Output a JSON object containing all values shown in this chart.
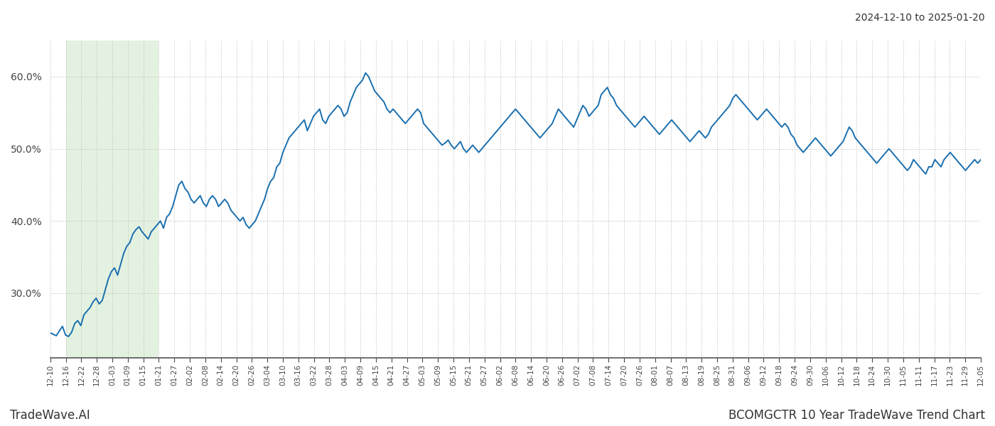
{
  "title_right": "2024-12-10 to 2025-01-20",
  "footer_left": "TradeWave.AI",
  "footer_right": "BCOMGCTR 10 Year TradeWave Trend Chart",
  "line_color": "#1a6faf",
  "line_width": 1.4,
  "highlight_color": "#cde8c8",
  "highlight_alpha": 0.55,
  "background_color": "#ffffff",
  "grid_color": "#bbbbbb",
  "grid_style": ":",
  "ylim_min": 21.0,
  "ylim_max": 65.0,
  "ytick_step": 10.0,
  "yticks": [
    30.0,
    40.0,
    50.0,
    60.0
  ],
  "x_labels": [
    "12-10",
    "12-16",
    "12-22",
    "12-28",
    "01-03",
    "01-09",
    "01-15",
    "01-21",
    "01-27",
    "02-02",
    "02-08",
    "02-14",
    "02-20",
    "02-26",
    "03-04",
    "03-10",
    "03-16",
    "03-22",
    "03-28",
    "04-03",
    "04-09",
    "04-15",
    "04-21",
    "04-27",
    "05-03",
    "05-09",
    "05-15",
    "05-21",
    "05-27",
    "06-02",
    "06-08",
    "06-14",
    "06-20",
    "06-26",
    "07-02",
    "07-08",
    "07-14",
    "07-20",
    "07-26",
    "08-01",
    "08-07",
    "08-13",
    "08-19",
    "08-25",
    "08-31",
    "09-06",
    "09-12",
    "09-18",
    "09-24",
    "09-30",
    "10-06",
    "10-12",
    "10-18",
    "10-24",
    "10-30",
    "11-05",
    "11-11",
    "11-17",
    "11-23",
    "11-29",
    "12-05"
  ],
  "highlight_label_start": "12-16",
  "highlight_label_end": "01-21",
  "values": [
    24.5,
    24.3,
    24.1,
    24.8,
    25.4,
    24.2,
    24.0,
    24.6,
    25.8,
    26.2,
    25.5,
    27.0,
    27.5,
    28.0,
    28.8,
    29.3,
    28.5,
    29.0,
    30.5,
    32.0,
    33.0,
    33.5,
    32.5,
    34.0,
    35.5,
    36.5,
    37.0,
    38.2,
    38.8,
    39.2,
    38.5,
    38.0,
    37.5,
    38.5,
    39.0,
    39.5,
    40.0,
    39.0,
    40.5,
    41.0,
    42.0,
    43.5,
    45.0,
    45.5,
    44.5,
    44.0,
    43.0,
    42.5,
    43.0,
    43.5,
    42.5,
    42.0,
    43.0,
    43.5,
    43.0,
    42.0,
    42.5,
    43.0,
    42.5,
    41.5,
    41.0,
    40.5,
    40.0,
    40.5,
    39.5,
    39.0,
    39.5,
    40.0,
    41.0,
    42.0,
    43.0,
    44.5,
    45.5,
    46.0,
    47.5,
    48.0,
    49.5,
    50.5,
    51.5,
    52.0,
    52.5,
    53.0,
    53.5,
    54.0,
    52.5,
    53.5,
    54.5,
    55.0,
    55.5,
    54.0,
    53.5,
    54.5,
    55.0,
    55.5,
    56.0,
    55.5,
    54.5,
    55.0,
    56.5,
    57.5,
    58.5,
    59.0,
    59.5,
    60.5,
    60.0,
    59.0,
    58.0,
    57.5,
    57.0,
    56.5,
    55.5,
    55.0,
    55.5,
    55.0,
    54.5,
    54.0,
    53.5,
    54.0,
    54.5,
    55.0,
    55.5,
    55.0,
    53.5,
    53.0,
    52.5,
    52.0,
    51.5,
    51.0,
    50.5,
    50.8,
    51.2,
    50.5,
    50.0,
    50.5,
    51.0,
    50.0,
    49.5,
    50.0,
    50.5,
    50.0,
    49.5,
    50.0,
    50.5,
    51.0,
    51.5,
    52.0,
    52.5,
    53.0,
    53.5,
    54.0,
    54.5,
    55.0,
    55.5,
    55.0,
    54.5,
    54.0,
    53.5,
    53.0,
    52.5,
    52.0,
    51.5,
    52.0,
    52.5,
    53.0,
    53.5,
    54.5,
    55.5,
    55.0,
    54.5,
    54.0,
    53.5,
    53.0,
    54.0,
    55.0,
    56.0,
    55.5,
    54.5,
    55.0,
    55.5,
    56.0,
    57.5,
    58.0,
    58.5,
    57.5,
    57.0,
    56.0,
    55.5,
    55.0,
    54.5,
    54.0,
    53.5,
    53.0,
    53.5,
    54.0,
    54.5,
    54.0,
    53.5,
    53.0,
    52.5,
    52.0,
    52.5,
    53.0,
    53.5,
    54.0,
    53.5,
    53.0,
    52.5,
    52.0,
    51.5,
    51.0,
    51.5,
    52.0,
    52.5,
    52.0,
    51.5,
    52.0,
    53.0,
    53.5,
    54.0,
    54.5,
    55.0,
    55.5,
    56.0,
    57.0,
    57.5,
    57.0,
    56.5,
    56.0,
    55.5,
    55.0,
    54.5,
    54.0,
    54.5,
    55.0,
    55.5,
    55.0,
    54.5,
    54.0,
    53.5,
    53.0,
    53.5,
    53.0,
    52.0,
    51.5,
    50.5,
    50.0,
    49.5,
    50.0,
    50.5,
    51.0,
    51.5,
    51.0,
    50.5,
    50.0,
    49.5,
    49.0,
    49.5,
    50.0,
    50.5,
    51.0,
    52.0,
    53.0,
    52.5,
    51.5,
    51.0,
    50.5,
    50.0,
    49.5,
    49.0,
    48.5,
    48.0,
    48.5,
    49.0,
    49.5,
    50.0,
    49.5,
    49.0,
    48.5,
    48.0,
    47.5,
    47.0,
    47.5,
    48.5,
    48.0,
    47.5,
    47.0,
    46.5,
    47.5,
    47.5,
    48.5,
    48.0,
    47.5,
    48.5,
    49.0,
    49.5,
    49.0,
    48.5,
    48.0,
    47.5,
    47.0,
    47.5,
    48.0,
    48.5,
    48.0,
    48.5
  ]
}
